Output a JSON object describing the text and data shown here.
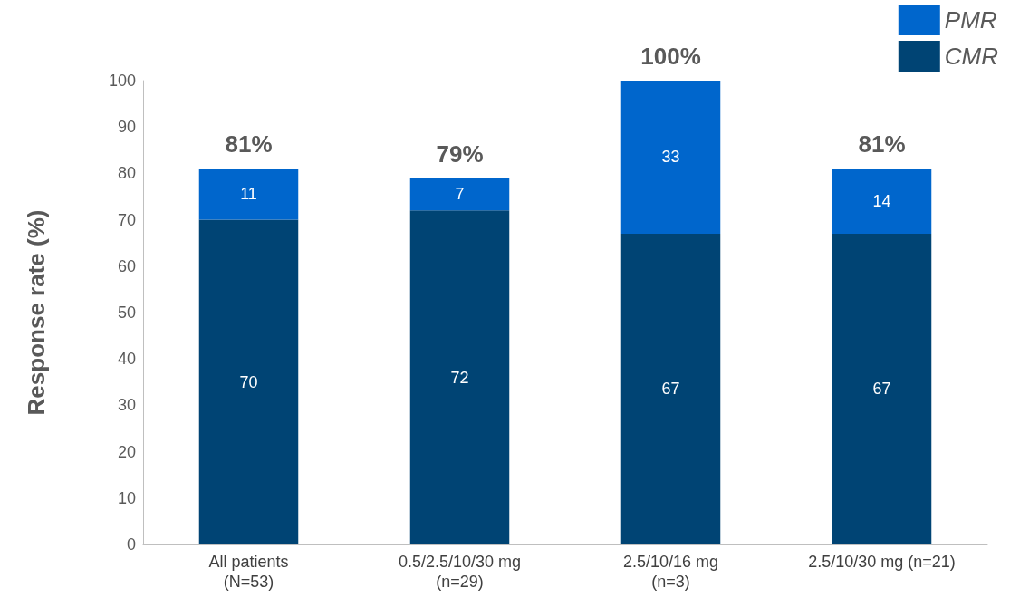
{
  "chart_data": {
    "type": "bar",
    "stacked": true,
    "ylabel": "Response rate (%)",
    "categories": [
      "All patients\n(N=53)",
      "0.5/2.5/10/30 mg\n(n=29)",
      "2.5/10/16 mg\n(n=3)",
      "2.5/10/30 mg (n=21)"
    ],
    "series": [
      {
        "name": "CMR",
        "color": "#004474",
        "values": [
          70,
          72,
          67,
          67
        ]
      },
      {
        "name": "PMR",
        "color": "#0066cc",
        "values": [
          11,
          7,
          33,
          14
        ]
      }
    ],
    "totals": [
      "81%",
      "79%",
      "100%",
      "81%"
    ],
    "data_labels": true,
    "legend": "top right",
    "grid": false,
    "ylim": [
      0,
      100
    ],
    "yticks": [
      0,
      10,
      20,
      30,
      40,
      50,
      60,
      70,
      80,
      90,
      100
    ]
  }
}
